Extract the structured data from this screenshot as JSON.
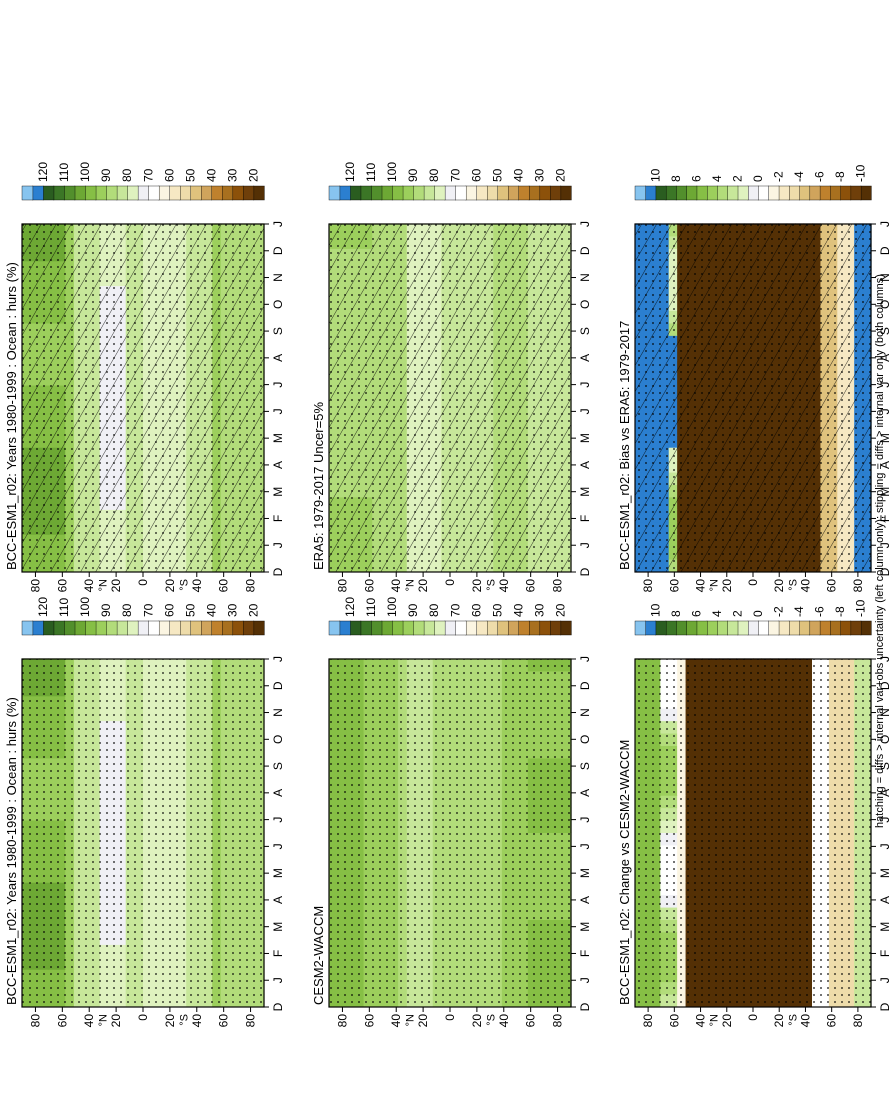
{
  "figure": {
    "footnote": "hatching = diffs > internal var+obs uncertainty (left column only); stippling = diffs > internal var only (both columns)"
  },
  "panels": [
    {
      "id": "bcc-model-left",
      "title": "BCC-ESM1_r02: Years 1980-1999 : Ocean : hurs (%)",
      "scale": "abs",
      "field": "model",
      "hatch": true,
      "stipple": "model_left"
    },
    {
      "id": "bcc-model-right",
      "title": "BCC-ESM1_r02: Years 1980-1999 : Ocean : hurs (%)",
      "scale": "abs",
      "field": "model",
      "hatch": false,
      "stipple": "model_right"
    },
    {
      "id": "era5-obs",
      "title": "ERA5: 1979-2017 Uncer=5%",
      "scale": "abs",
      "field": "era5",
      "hatch": true,
      "stipple": "obs"
    },
    {
      "id": "cesm2-waccm",
      "title": "CESM2-WACCM",
      "scale": "abs",
      "field": "cesm",
      "hatch": false,
      "stipple": "all"
    },
    {
      "id": "bias-vs-era5",
      "title": "BCC-ESM1_r02: Bias vs ERA5: 1979-2017",
      "scale": "diff",
      "field": "bias",
      "hatch": true,
      "stipple": "diff"
    },
    {
      "id": "change-vs-cesm2",
      "title": "BCC-ESM1_r02: Change vs CESM2-WACCM",
      "scale": "diff",
      "field": "change",
      "hatch": false,
      "stipple": "all"
    }
  ],
  "axes": {
    "month_labels": [
      "D",
      "J",
      "F",
      "M",
      "A",
      "M",
      "J",
      "J",
      "A",
      "S",
      "O",
      "N",
      "D",
      "J"
    ],
    "lat_labels": [
      "80",
      "60",
      "40",
      "20",
      "0",
      "20",
      "40",
      "60",
      "80"
    ],
    "lat_values": [
      -80,
      -60,
      -40,
      -20,
      0,
      20,
      40,
      60,
      80
    ],
    "south_label": "°S",
    "north_label": "°N"
  },
  "colorbars": {
    "abs": {
      "labels": [
        "20",
        "30",
        "40",
        "50",
        "60",
        "70",
        "80",
        "90",
        "100",
        "110",
        "120"
      ],
      "colors": [
        "#543005",
        "#6f3f0a",
        "#8c510a",
        "#a8701f",
        "#bf812d",
        "#d0a45c",
        "#dfc27d",
        "#eedcaa",
        "#f6e8c3",
        "#fbf5e2",
        "#ffffff",
        "#f0f0f5",
        "#dff2bf",
        "#c7e79a",
        "#b2dc7a",
        "#9ccf5c",
        "#86bf45",
        "#6da834",
        "#528f2c",
        "#3b7626",
        "#2a5d20",
        "#2b7fd0",
        "#87c4ef"
      ]
    },
    "diff": {
      "labels": [
        "-10",
        "-8",
        "-6",
        "-4",
        "-2",
        "0",
        "2",
        "4",
        "6",
        "8",
        "10"
      ],
      "colors": [
        "#543005",
        "#6f3f0a",
        "#8c510a",
        "#a8701f",
        "#bf812d",
        "#d0a45c",
        "#dfc27d",
        "#eedcaa",
        "#f6e8c3",
        "#fbf5e2",
        "#ffffff",
        "#f0f0f5",
        "#dff2bf",
        "#c7e79a",
        "#b2dc7a",
        "#9ccf5c",
        "#86bf45",
        "#6da834",
        "#528f2c",
        "#3b7626",
        "#2a5d20",
        "#2b7fd0",
        "#87c4ef"
      ]
    }
  },
  "chart_data": [
    {
      "type": "heatmap",
      "title": "BCC-ESM1_r02: Years 1980-1999 : Ocean : hurs (%)",
      "x": [
        "D",
        "J",
        "F",
        "M",
        "A",
        "M",
        "J",
        "J",
        "A",
        "S",
        "O",
        "N",
        "D",
        "J"
      ],
      "y": [
        -80,
        -60,
        -40,
        -20,
        0,
        20,
        40,
        60,
        80
      ],
      "values": "humidity (%) 72–105"
    },
    {
      "type": "heatmap",
      "title": "ERA5: 1979-2017 Uncer=5%",
      "x": [
        "D",
        "J",
        "F",
        "M",
        "A",
        "M",
        "J",
        "J",
        "A",
        "S",
        "O",
        "N",
        "D",
        "J"
      ],
      "y": [
        -80,
        -60,
        -40,
        -20,
        0,
        20,
        40,
        60,
        80
      ],
      "values": "humidity (%) 74–96"
    },
    {
      "type": "heatmap",
      "title": "CESM2-WACCM",
      "x": [
        "D",
        "J",
        "F",
        "M",
        "A",
        "M",
        "J",
        "J",
        "A",
        "S",
        "O",
        "N",
        "D",
        "J"
      ],
      "y": [
        -80,
        -60,
        -40,
        -20,
        0,
        20,
        40,
        60,
        80
      ],
      "values": "humidity (%) 76–102"
    },
    {
      "type": "heatmap",
      "title": "BCC-ESM1_r02: Bias vs ERA5: 1979-2017",
      "x": [
        "D",
        "J",
        "F",
        "M",
        "A",
        "M",
        "J",
        "J",
        "A",
        "S",
        "O",
        "N",
        "D",
        "J"
      ],
      "y": [
        -80,
        -60,
        -40,
        -20,
        0,
        20,
        40,
        60,
        80
      ],
      "values": "difference -10 to +10"
    },
    {
      "type": "heatmap",
      "title": "BCC-ESM1_r02: Change vs CESM2-WACCM",
      "x": [
        "D",
        "J",
        "F",
        "M",
        "A",
        "M",
        "J",
        "J",
        "A",
        "S",
        "O",
        "N",
        "D",
        "J"
      ],
      "y": [
        -80,
        -60,
        -40,
        -20,
        0,
        20,
        40,
        60,
        80
      ],
      "values": "difference -10 to +10"
    }
  ]
}
